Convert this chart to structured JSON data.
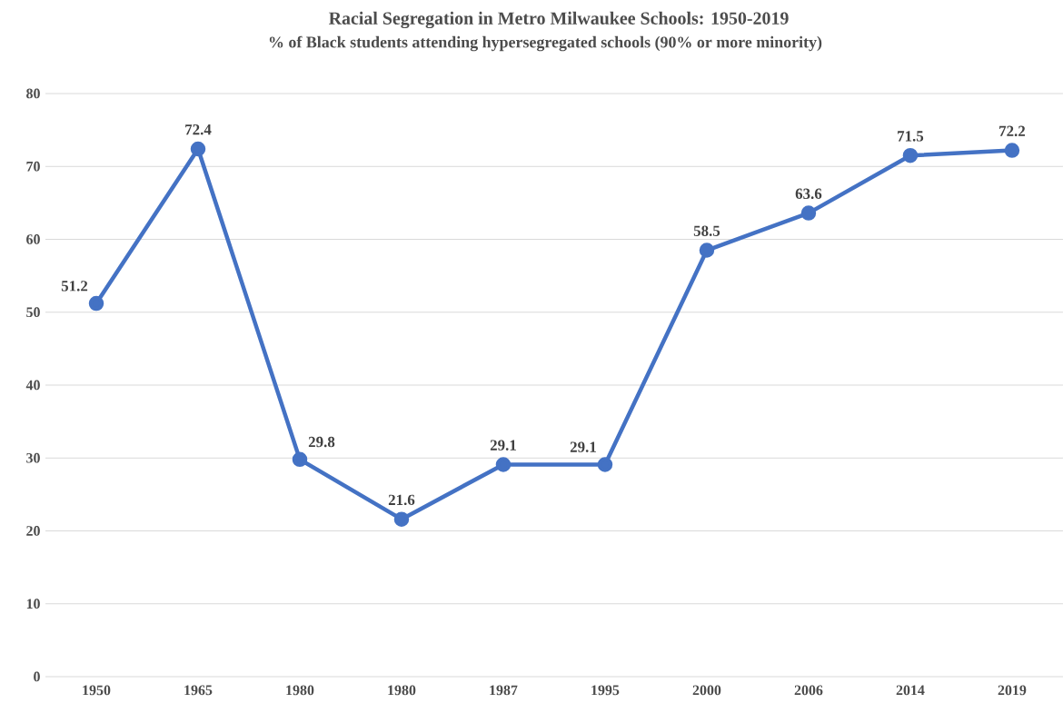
{
  "chart_data": {
    "type": "line",
    "title": "Racial Segregation in Metro Milwaukee Schools: 1950-2019",
    "subtitle": "% of Black students attending hypersegregated schools (90% or more minority)",
    "categories": [
      "1950",
      "1965",
      "1980",
      "1980",
      "1987",
      "1995",
      "2000",
      "2006",
      "2014",
      "2019"
    ],
    "values": [
      51.2,
      72.4,
      29.8,
      21.6,
      29.1,
      29.1,
      58.5,
      63.6,
      71.5,
      72.2
    ],
    "color": "#4472c4",
    "marker": "circle",
    "data_labels": true,
    "grid": "y",
    "ylim": [
      0,
      80
    ],
    "yticks": [
      0,
      10,
      20,
      30,
      40,
      50,
      60,
      70,
      80
    ]
  }
}
